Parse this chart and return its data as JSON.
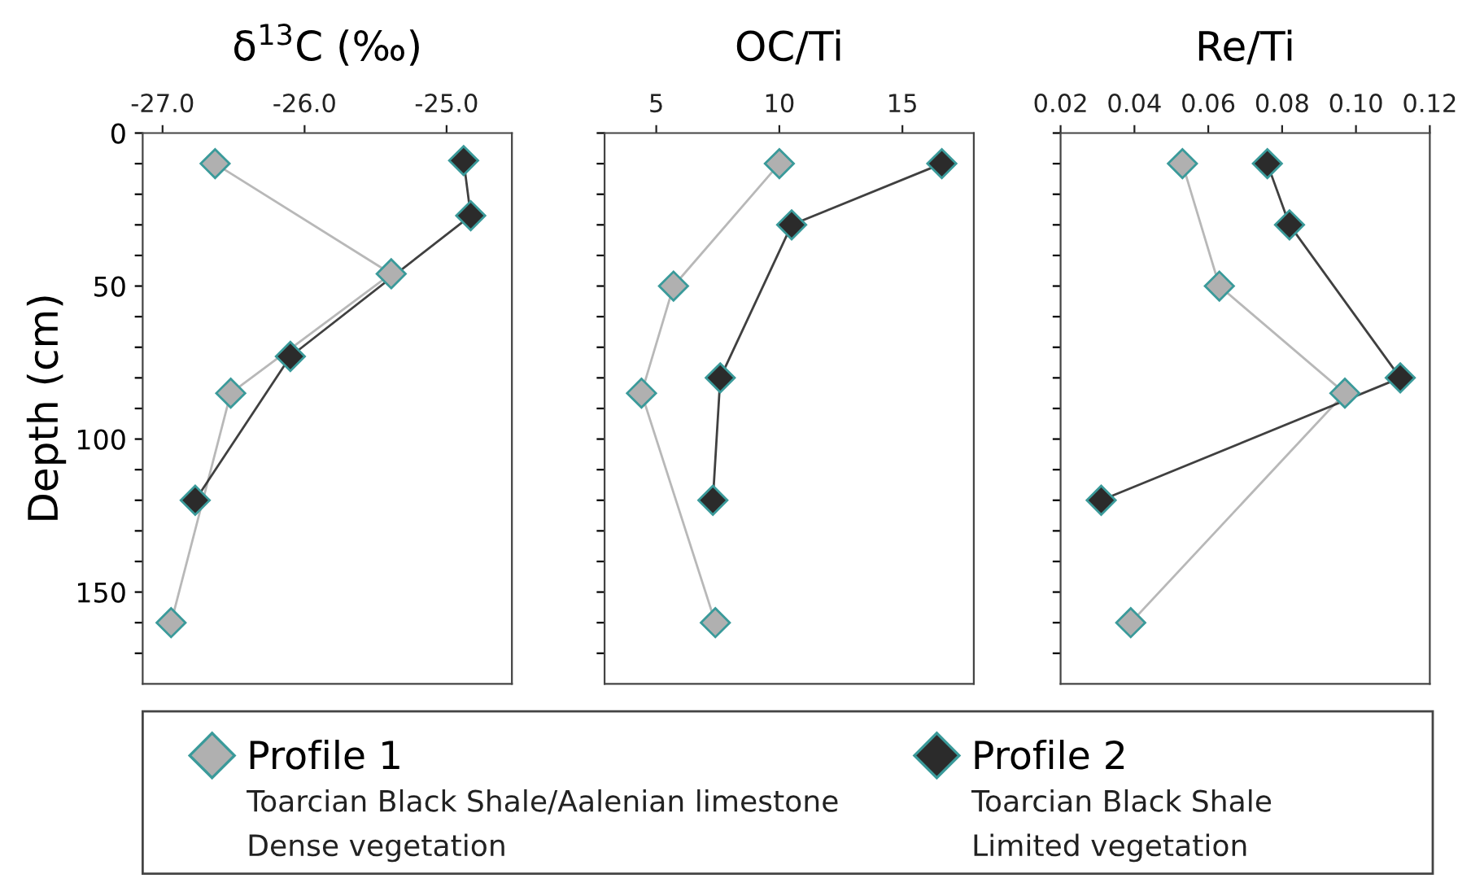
{
  "chart_data": [
    {
      "type": "line",
      "title": "δ$^{13}$C (‰)",
      "ylabel": "Depth (cm)",
      "marker": "diamond",
      "legend": "bottom",
      "xlim": [
        -27.14,
        -24.54
      ],
      "xticks": [
        {
          "value": -27,
          "label": "-27.0"
        },
        {
          "value": -26,
          "label": "-26.0"
        },
        {
          "value": -25,
          "label": "-25.0"
        }
      ],
      "ylim": [
        180,
        0
      ],
      "yticks": [
        0,
        {
          "value": 10,
          "label": null
        },
        {
          "value": 20,
          "label": null
        },
        {
          "value": 30,
          "label": null
        },
        {
          "value": 40,
          "label": null
        },
        50,
        {
          "value": 60,
          "label": null
        },
        {
          "value": 70,
          "label": null
        },
        {
          "value": 80,
          "label": null
        },
        {
          "value": 90,
          "label": null
        },
        100,
        {
          "value": 110,
          "label": null
        },
        {
          "value": 120,
          "label": null
        },
        {
          "value": 130,
          "label": null
        },
        {
          "value": 140,
          "label": null
        },
        150,
        {
          "value": 160,
          "label": null
        },
        {
          "value": 170,
          "label": null
        }
      ],
      "annotations": [
        "Toarcian Black Shale/Aalenian limestone",
        "Dense vegetation",
        "Toarcian Black Shale",
        "Limited vegetation"
      ],
      "series": [
        {
          "name": "Profile 1",
          "color": "#b0b0b0",
          "x": [
            -26.63,
            -25.39,
            -26.52,
            -26.94
          ],
          "values": [
            10,
            46,
            85,
            160
          ]
        },
        {
          "name": "Profile 2",
          "color": "#2b2b2b",
          "x": [
            -24.88,
            -24.83,
            -26.1,
            -26.77
          ],
          "values": [
            9,
            27,
            73,
            120
          ]
        }
      ]
    },
    {
      "type": "line",
      "title": "OC/Ti",
      "marker": "diamond",
      "tick_labels": "x",
      "xlim": [
        2.9,
        17.9
      ],
      "xticks": [
        5,
        10,
        15
      ],
      "ylim": [
        180,
        0
      ],
      "yticks": [
        0,
        {
          "value": 10,
          "label": null
        },
        {
          "value": 20,
          "label": null
        },
        {
          "value": 30,
          "label": null
        },
        {
          "value": 40,
          "label": null
        },
        50,
        {
          "value": 60,
          "label": null
        },
        {
          "value": 70,
          "label": null
        },
        {
          "value": 80,
          "label": null
        },
        {
          "value": 90,
          "label": null
        },
        100,
        {
          "value": 110,
          "label": null
        },
        {
          "value": 120,
          "label": null
        },
        {
          "value": 130,
          "label": null
        },
        {
          "value": 140,
          "label": null
        },
        150,
        {
          "value": 160,
          "label": null
        },
        {
          "value": 170,
          "label": null
        }
      ],
      "series": [
        {
          "color": "#b0b0b0",
          "x": [
            10.0,
            5.7,
            4.4,
            7.4
          ],
          "values": [
            10,
            50,
            85,
            160
          ]
        },
        {
          "color": "#2b2b2b",
          "x": [
            16.6,
            10.5,
            7.6,
            7.3
          ],
          "values": [
            10,
            30,
            80,
            120
          ]
        }
      ]
    },
    {
      "type": "line",
      "title": "Re/Ti",
      "marker": "diamond",
      "tick_labels": "x",
      "xlim": [
        0.02,
        0.12
      ],
      "xticks": [
        0.02,
        0.04,
        0.06,
        0.08,
        {
          "value": 0.1,
          "label": "0.10"
        },
        0.12
      ],
      "ylim": [
        180,
        0
      ],
      "yticks": [
        0,
        {
          "value": 10,
          "label": null
        },
        {
          "value": 20,
          "label": null
        },
        {
          "value": 30,
          "label": null
        },
        {
          "value": 40,
          "label": null
        },
        50,
        {
          "value": 60,
          "label": null
        },
        {
          "value": 70,
          "label": null
        },
        {
          "value": 80,
          "label": null
        },
        {
          "value": 90,
          "label": null
        },
        100,
        {
          "value": 110,
          "label": null
        },
        {
          "value": 120,
          "label": null
        },
        {
          "value": 130,
          "label": null
        },
        {
          "value": 140,
          "label": null
        },
        150,
        {
          "value": 160,
          "label": null
        },
        {
          "value": 170,
          "label": null
        }
      ],
      "series": [
        {
          "color": "#b0b0b0",
          "x": [
            0.053,
            0.063,
            0.097,
            0.039
          ],
          "values": [
            10,
            50,
            85,
            160
          ]
        },
        {
          "color": "#2b2b2b",
          "x": [
            0.076,
            0.082,
            0.112,
            0.031
          ],
          "values": [
            10,
            30,
            80,
            120
          ]
        }
      ]
    }
  ]
}
